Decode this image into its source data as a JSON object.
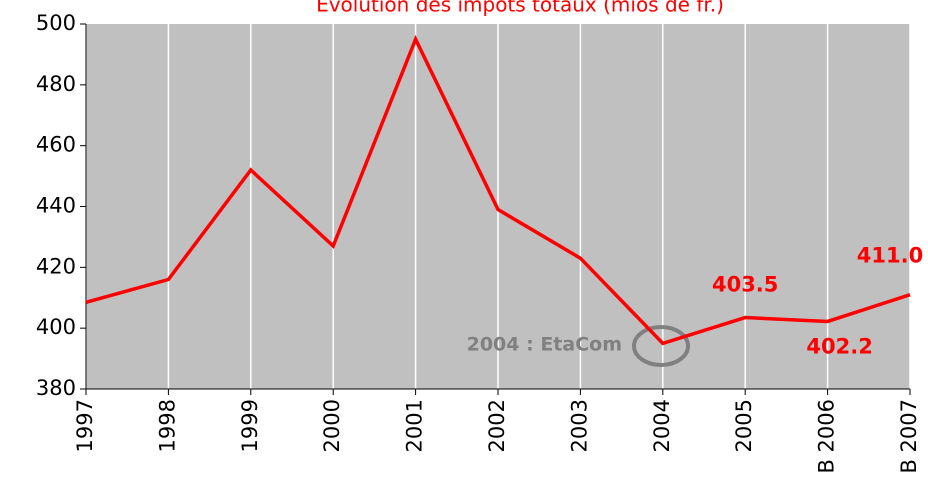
{
  "chart_data": {
    "type": "line",
    "title": "Evolution des impôts totaux (mios de fr.)",
    "categories": [
      "1997",
      "1998",
      "1999",
      "2000",
      "2001",
      "2002",
      "2003",
      "2004",
      "2005",
      "B 2006",
      "B 2007"
    ],
    "series": [
      {
        "name": "Impôts totaux",
        "color": "#ff0000",
        "values": [
          408.5,
          416,
          452,
          427,
          495,
          439,
          423,
          395,
          403.5,
          402.2,
          411.0
        ],
        "value_labels": [
          null,
          null,
          null,
          null,
          null,
          null,
          null,
          null,
          "403.5",
          "402.2",
          "411.0"
        ]
      }
    ],
    "ylim": [
      380,
      500
    ],
    "yticks": [
      380,
      400,
      420,
      440,
      460,
      480,
      500
    ],
    "grid": true,
    "background": "#c0c0c0",
    "annotation": "2004 : EtaCom"
  }
}
